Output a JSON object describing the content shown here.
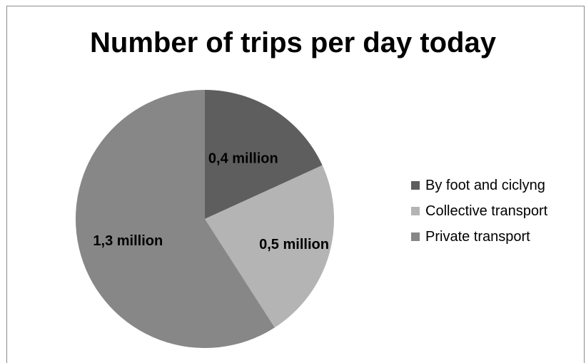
{
  "chart_data": {
    "type": "pie",
    "title": "Number of trips per day today",
    "categories": [
      "By foot and ciclyng",
      "Collective transport",
      "Private transport"
    ],
    "values": [
      0.4,
      0.5,
      1.3
    ],
    "data_labels": [
      "0,4 million",
      "0,5 million",
      "1,3 million"
    ],
    "colors": [
      "#5e5e5e",
      "#b4b4b4",
      "#878787"
    ],
    "legend_position": "right"
  }
}
